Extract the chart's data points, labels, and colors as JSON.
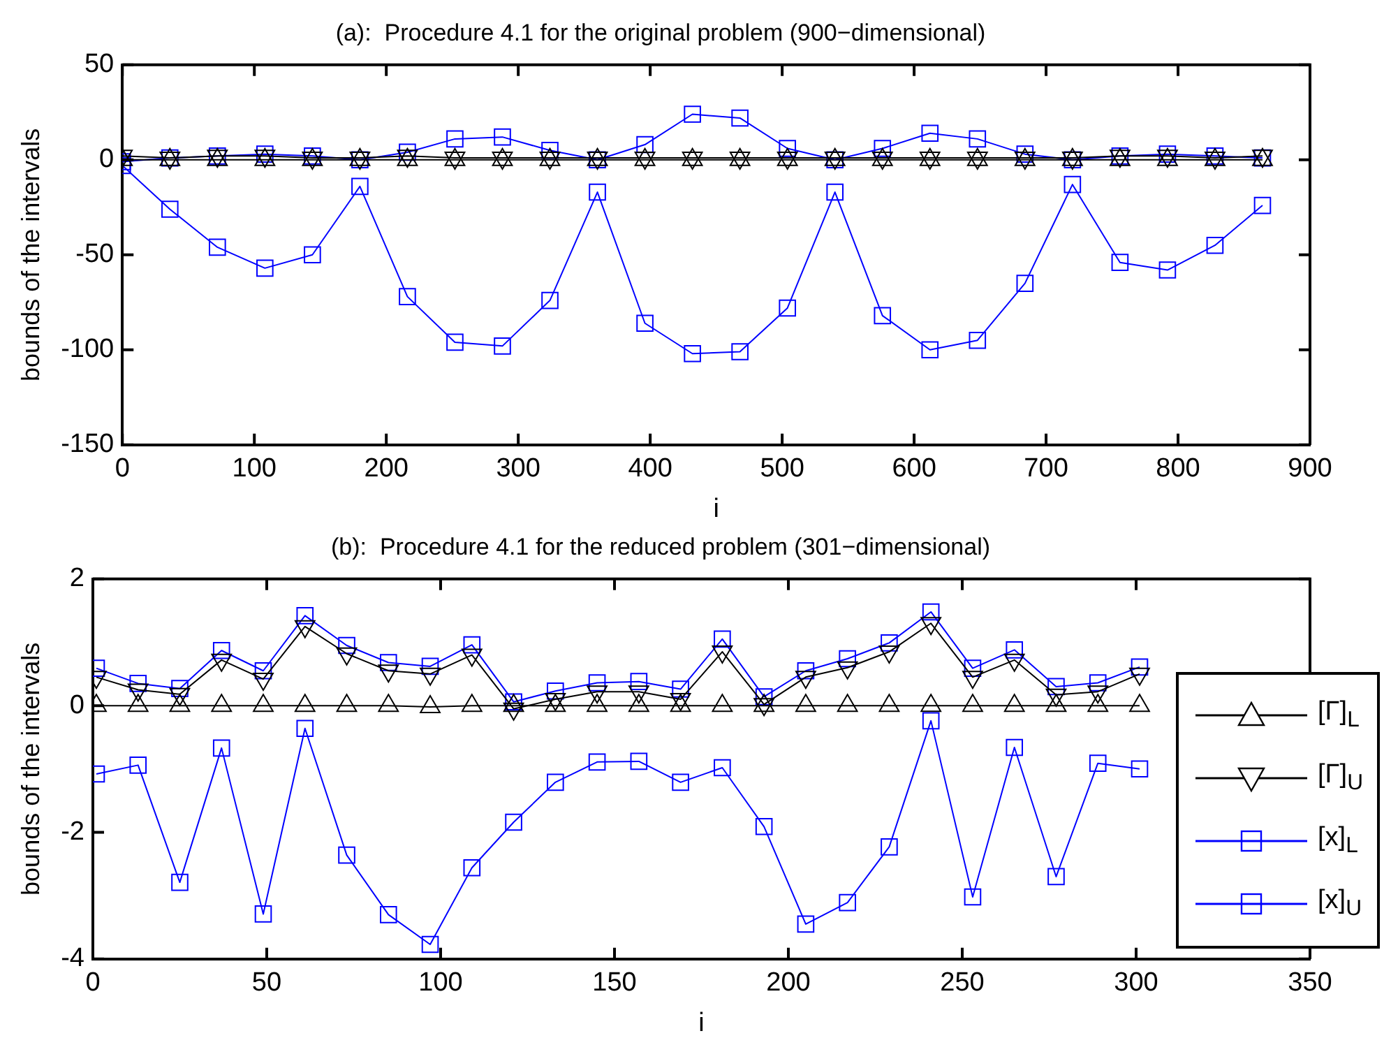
{
  "chart_data": [
    {
      "type": "line",
      "title": "(a):  Procedure 4.1 for the original problem (900−dimensional)",
      "xlabel": "i",
      "ylabel": "bounds of the intervals",
      "x": [
        0,
        36,
        72,
        108,
        144,
        180,
        216,
        252,
        288,
        324,
        360,
        396,
        432,
        468,
        504,
        540,
        576,
        612,
        648,
        684,
        720,
        756,
        792,
        828,
        864
      ],
      "xlim": [
        0,
        900
      ],
      "xticks": [
        0,
        100,
        200,
        300,
        400,
        500,
        600,
        700,
        800,
        900
      ],
      "ylim": [
        -150,
        50
      ],
      "yticks": [
        -150,
        -100,
        -50,
        0,
        50
      ],
      "grid": false,
      "legend": false,
      "series": [
        {
          "color": "#000000",
          "marker": "triangle",
          "values": [
            0,
            0,
            0,
            0,
            0,
            0,
            0,
            0,
            0,
            0,
            0,
            0,
            0,
            0,
            0,
            0,
            0,
            0,
            0,
            0,
            0,
            0,
            0,
            0,
            0
          ]
        },
        {
          "color": "#000000",
          "marker": "triangle-down",
          "values": [
            2,
            1,
            2,
            2,
            1,
            1,
            2,
            1,
            1,
            1,
            1,
            1,
            1,
            1,
            1,
            1,
            1,
            1,
            1,
            1,
            1,
            2,
            2,
            1,
            2
          ]
        },
        {
          "color": "#0000ff",
          "marker": "square",
          "values": [
            -3,
            -26,
            -46,
            -57,
            -50,
            -14,
            -72,
            -96,
            -98,
            -74,
            -17,
            -86,
            -102,
            -101,
            -78,
            -17,
            -82,
            -100,
            -95,
            -65,
            -13,
            -54,
            -58,
            -45,
            -24
          ]
        },
        {
          "color": "#0000ff",
          "marker": "square",
          "values": [
            -1,
            1,
            2,
            3,
            2,
            0,
            4,
            11,
            12,
            5,
            0,
            8,
            24,
            22,
            6,
            0,
            6,
            14,
            11,
            3,
            0,
            2,
            3,
            2,
            1
          ]
        }
      ]
    },
    {
      "type": "line",
      "title": "(b):  Procedure 4.1 for the reduced problem (301−dimensional)",
      "xlabel": "i",
      "ylabel": "bounds of the intervals",
      "x": [
        1,
        13,
        25,
        37,
        49,
        61,
        73,
        85,
        97,
        109,
        121,
        133,
        145,
        157,
        169,
        181,
        193,
        205,
        217,
        229,
        241,
        253,
        265,
        277,
        289,
        301
      ],
      "xlim": [
        0,
        350
      ],
      "xticks": [
        0,
        50,
        100,
        150,
        200,
        250,
        300,
        350
      ],
      "ylim": [
        -4,
        2
      ],
      "yticks": [
        -4,
        -2,
        0,
        2
      ],
      "grid": false,
      "legend": "right",
      "series": [
        {
          "name": "[Γ]$_{L}$",
          "color": "#000000",
          "marker": "triangle",
          "values": [
            0,
            0,
            0,
            0,
            0,
            0,
            0,
            0,
            -0.02,
            0,
            0,
            0,
            0,
            0,
            0,
            0,
            0,
            0,
            0,
            0,
            0,
            0,
            0,
            0,
            0,
            0
          ]
        },
        {
          "name": "[Γ]$_{U}$",
          "color": "#000000",
          "marker": "triangle-down",
          "values": [
            0.45,
            0.25,
            0.18,
            0.72,
            0.42,
            1.25,
            0.82,
            0.55,
            0.5,
            0.8,
            -0.05,
            0.1,
            0.22,
            0.22,
            0.1,
            0.85,
            0.02,
            0.45,
            0.6,
            0.85,
            1.3,
            0.45,
            0.72,
            0.17,
            0.22,
            0.5
          ]
        },
        {
          "name": "[x]$_{L}$",
          "color": "#0000ff",
          "marker": "square",
          "values": [
            -1.08,
            -0.94,
            -2.79,
            -0.67,
            -3.29,
            -0.36,
            -2.36,
            -3.3,
            -3.77,
            -2.56,
            -1.84,
            -1.21,
            -0.89,
            -0.88,
            -1.21,
            -0.98,
            -1.91,
            -3.45,
            -3.11,
            -2.23,
            -0.24,
            -3.02,
            -0.66,
            -2.7,
            -0.91,
            -1.0
          ]
        },
        {
          "name": "[x]$_{U}$",
          "color": "#0000ff",
          "marker": "square",
          "values": [
            0.59,
            0.35,
            0.27,
            0.87,
            0.55,
            1.42,
            0.95,
            0.68,
            0.62,
            0.96,
            0.06,
            0.23,
            0.36,
            0.38,
            0.26,
            1.05,
            0.14,
            0.55,
            0.74,
            0.99,
            1.48,
            0.59,
            0.88,
            0.3,
            0.36,
            0.61
          ]
        }
      ]
    }
  ]
}
